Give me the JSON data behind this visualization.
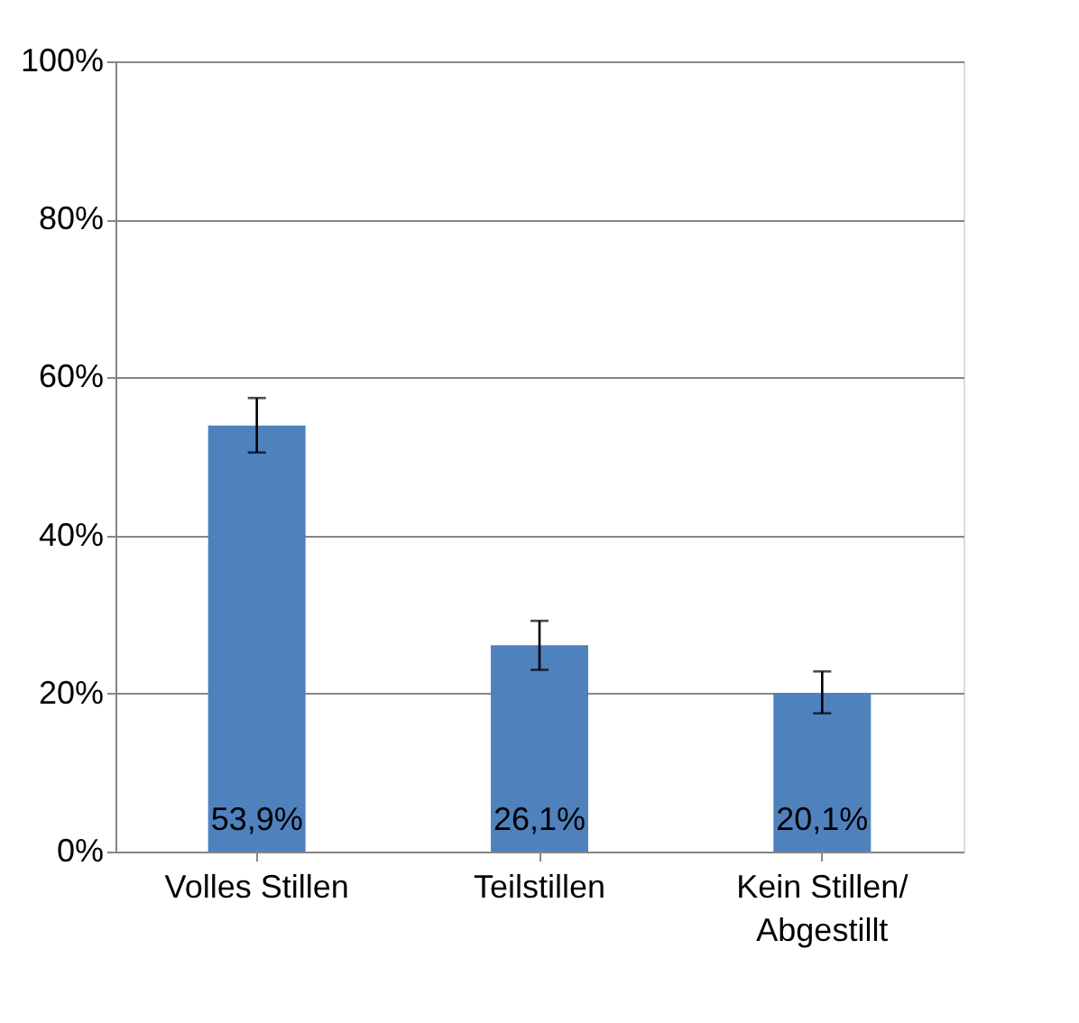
{
  "chart_data": {
    "type": "bar",
    "categories": [
      "Volles Stillen",
      "Teilstillen",
      "Kein Stillen/ Abgestillt"
    ],
    "values": [
      53.9,
      26.1,
      20.1
    ],
    "color": "#4f81bd",
    "errors": [
      [
        50.5,
        57.4
      ],
      [
        23.0,
        29.2
      ],
      [
        17.5,
        22.8
      ]
    ],
    "value_labels": [
      "53,9%",
      "26,1%",
      "20,1%"
    ],
    "ylim": [
      0,
      100
    ],
    "yticks": [
      {
        "value": 0,
        "label": "0%"
      },
      {
        "value": 20,
        "label": "20%"
      },
      {
        "value": 40,
        "label": "40%"
      },
      {
        "value": 60,
        "label": "60%"
      },
      {
        "value": 80,
        "label": "80%"
      },
      {
        "value": 100,
        "label": "100%"
      }
    ],
    "grid": "y"
  }
}
